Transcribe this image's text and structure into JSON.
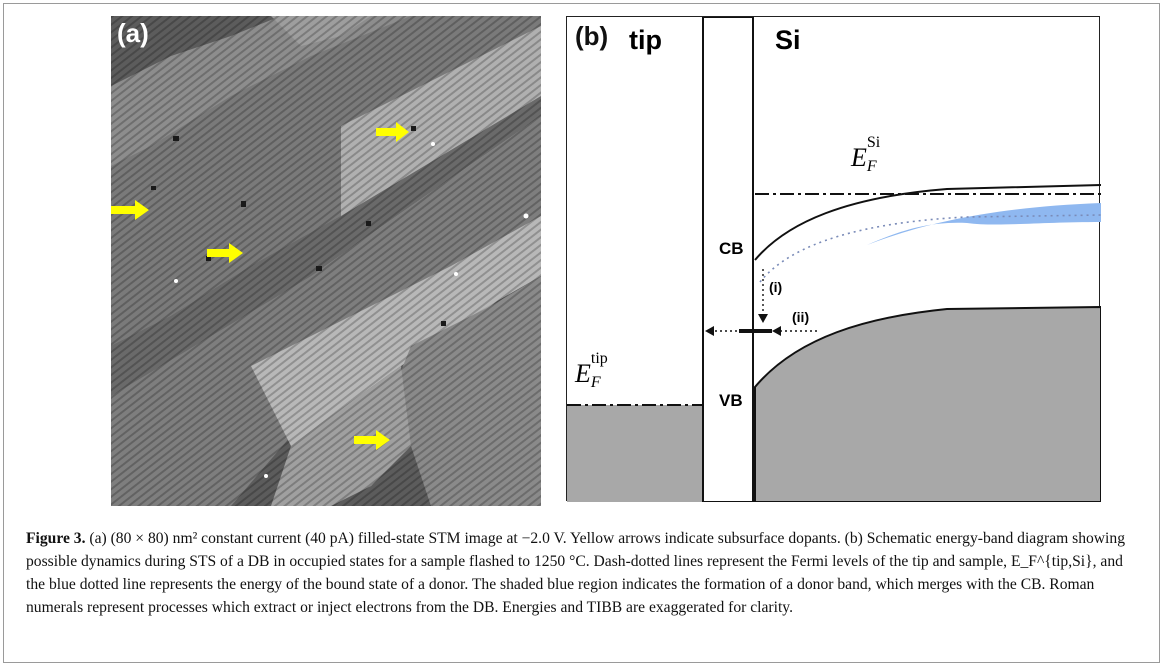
{
  "panel_a": {
    "label": "(a)",
    "arrow_color": "#ffff00",
    "arrow_count": 4
  },
  "panel_b": {
    "label": "(b)",
    "tip_label": "tip",
    "si_label": "Si",
    "ef_si": {
      "base": "E",
      "sub": "F",
      "sup": "Si"
    },
    "ef_tip": {
      "base": "E",
      "sub": "F",
      "sup": "tip"
    },
    "cb_label": "CB",
    "vb_label": "VB",
    "process_i": "(i)",
    "process_ii": "(ii)",
    "donor_band_color": "#8fb8f0",
    "filled_state_color": "#a8a8a8"
  },
  "caption": {
    "lead": "Figure 3.",
    "text": " (a) (80 × 80) nm² constant current (40 pA) filled-state STM image at −2.0 V. Yellow arrows indicate subsurface dopants. (b) Schematic energy-band diagram showing possible dynamics during STS of a DB in occupied states for a sample flashed to 1250 °C. Dash-dotted lines represent the Fermi levels of the tip and sample, E_F^{tip,Si}, and the blue dotted line represents the energy of the bound state of a donor. The shaded blue region indicates the formation of a donor band, which merges with the CB. Roman numerals represent processes which extract or inject electrons from the DB. Energies and TIBB are exaggerated for clarity."
  }
}
